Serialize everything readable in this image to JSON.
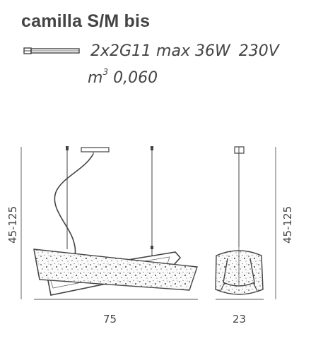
{
  "product": {
    "name": "camilla S/M bis"
  },
  "specs": {
    "bulb": "2x2G11 max 36W",
    "voltage": "230V",
    "volume_prefix": "m",
    "volume_exp": "3",
    "volume_value": "0,060",
    "bulb_icon": "fluorescent-tube-icon"
  },
  "dimensions": {
    "height_front": "45-125",
    "width": "75",
    "height_side": "45-125",
    "depth": "23"
  }
}
